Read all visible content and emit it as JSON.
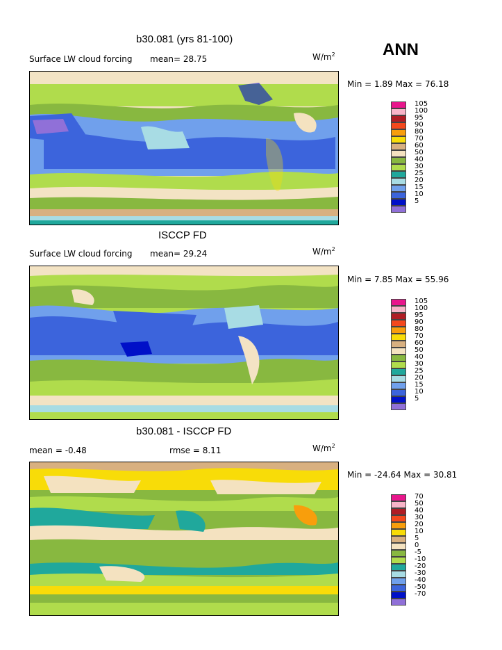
{
  "season": "ANN",
  "panels": [
    {
      "title": "b30.081 (yrs 81-100)",
      "variable": "Surface LW cloud forcing",
      "stat": "mean=   28.75",
      "units_base": "W/m",
      "units_exp": "2",
      "minmax": "Min =    1.89 Max =   76.18",
      "legend": {
        "labels": [
          "105",
          "100",
          "95",
          "90",
          "80",
          "70",
          "60",
          "50",
          "40",
          "30",
          "25",
          "20",
          "15",
          "10",
          "5"
        ],
        "colors": [
          "#e8168c",
          "#f8b4c8",
          "#b01c24",
          "#f4481c",
          "#f89e0c",
          "#f8dc08",
          "#d8b080",
          "#f4e2c0",
          "#88b840",
          "#b0dc4c",
          "#20a89c",
          "#a8dce4",
          "#70a0ec",
          "#3c64dc",
          "#0010c8",
          "#9070d8"
        ]
      }
    },
    {
      "title": "ISCCP FD",
      "variable": "Surface LW cloud forcing",
      "stat": "mean=   29.24",
      "units_base": "W/m",
      "units_exp": "2",
      "minmax": "Min =    7.85 Max =   55.96",
      "legend": {
        "labels": [
          "105",
          "100",
          "95",
          "90",
          "80",
          "70",
          "60",
          "50",
          "40",
          "30",
          "25",
          "20",
          "15",
          "10",
          "5"
        ],
        "colors": [
          "#e8168c",
          "#f8b4c8",
          "#b01c24",
          "#f4481c",
          "#f89e0c",
          "#f8dc08",
          "#d8b080",
          "#f4e2c0",
          "#88b840",
          "#b0dc4c",
          "#20a89c",
          "#a8dce4",
          "#70a0ec",
          "#3c64dc",
          "#0010c8",
          "#9070d8"
        ]
      }
    },
    {
      "title": "b30.081 - ISCCP FD",
      "variable": "mean =   -0.48",
      "stat": "rmse =    8.11",
      "units_base": "W/m",
      "units_exp": "2",
      "minmax": "Min = -24.64 Max =   30.81",
      "legend": {
        "labels": [
          "70",
          "50",
          "40",
          "30",
          "20",
          "10",
          "5",
          "0",
          "-5",
          "-10",
          "-20",
          "-30",
          "-40",
          "-50",
          "-70"
        ],
        "colors": [
          "#e8168c",
          "#f8b4c8",
          "#b01c24",
          "#f4481c",
          "#f89e0c",
          "#f8dc08",
          "#d8b080",
          "#f4e2c0",
          "#88b840",
          "#b0dc4c",
          "#20a89c",
          "#a8dce4",
          "#70a0ec",
          "#3c64dc",
          "#0010c8",
          "#9070d8"
        ]
      }
    }
  ]
}
